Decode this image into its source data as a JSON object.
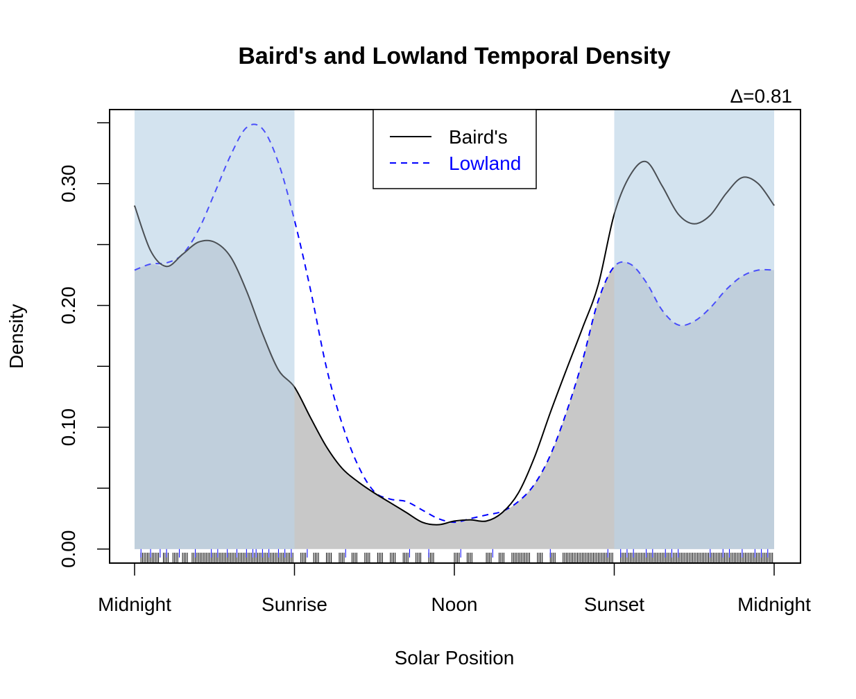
{
  "chart_data": {
    "type": "area",
    "title": "Baird's and Lowland Temporal Density",
    "xlabel": "Solar Position",
    "ylabel": "Density",
    "annotation": "Δ=0.81",
    "x_domain": [
      0,
      1
    ],
    "ylim": [
      -0.0115,
      0.3608
    ],
    "y_ticks": [
      0.0,
      0.05,
      0.1,
      0.15,
      0.2,
      0.25,
      0.3,
      0.35
    ],
    "y_tick_labels": [
      "0.00",
      "",
      "0.10",
      "",
      "0.20",
      "",
      "0.30",
      ""
    ],
    "x_ticks": [
      0,
      0.25,
      0.5,
      0.75,
      1
    ],
    "x_tick_labels": [
      "Midnight",
      "Sunrise",
      "Noon",
      "Sunset",
      "Midnight"
    ],
    "night_shading": [
      [
        0,
        0.25
      ],
      [
        0.75,
        1
      ]
    ],
    "overlap_shaded": true,
    "grid": false,
    "legend_position": "top-center",
    "colors": {
      "series_1": "#000000",
      "series_2": "#0000ff",
      "night": "#d3e3f0",
      "overlap": "#c8c8c8",
      "night_overlap": "#bfd0de",
      "curve_in_night": "#6b7b8c"
    },
    "x": [
      0,
      0.025,
      0.05,
      0.075,
      0.1,
      0.125,
      0.15,
      0.175,
      0.2,
      0.225,
      0.25,
      0.275,
      0.3,
      0.325,
      0.35,
      0.375,
      0.4,
      0.425,
      0.45,
      0.475,
      0.5,
      0.525,
      0.55,
      0.575,
      0.6,
      0.625,
      0.65,
      0.675,
      0.7,
      0.725,
      0.75,
      0.775,
      0.8,
      0.825,
      0.85,
      0.875,
      0.9,
      0.925,
      0.95,
      0.975,
      1
    ],
    "series": [
      {
        "name": "Baird's",
        "style": "solid",
        "values": [
          0.282,
          0.245,
          0.232,
          0.242,
          0.252,
          0.252,
          0.24,
          0.212,
          0.177,
          0.147,
          0.133,
          0.108,
          0.084,
          0.066,
          0.055,
          0.046,
          0.038,
          0.03,
          0.022,
          0.02,
          0.023,
          0.024,
          0.023,
          0.03,
          0.046,
          0.075,
          0.112,
          0.147,
          0.181,
          0.217,
          0.275,
          0.307,
          0.318,
          0.298,
          0.275,
          0.267,
          0.274,
          0.292,
          0.305,
          0.3,
          0.282
        ]
      },
      {
        "name": "Lowland",
        "style": "dashed",
        "values": [
          0.229,
          0.234,
          0.235,
          0.242,
          0.262,
          0.292,
          0.323,
          0.346,
          0.345,
          0.317,
          0.27,
          0.213,
          0.149,
          0.102,
          0.068,
          0.047,
          0.041,
          0.039,
          0.032,
          0.025,
          0.022,
          0.025,
          0.028,
          0.031,
          0.039,
          0.053,
          0.077,
          0.112,
          0.154,
          0.204,
          0.232,
          0.234,
          0.219,
          0.196,
          0.184,
          0.187,
          0.198,
          0.213,
          0.224,
          0.229,
          0.229
        ]
      }
    ],
    "rug": {
      "series_1_ticks": [
        0.01,
        0.02,
        0.03,
        0.045,
        0.06,
        0.075,
        0.09,
        0.1,
        0.11,
        0.12,
        0.13,
        0.14,
        0.15,
        0.16,
        0.17,
        0.18,
        0.19,
        0.2,
        0.21,
        0.22,
        0.23,
        0.24,
        0.26,
        0.28,
        0.3,
        0.32,
        0.34,
        0.36,
        0.38,
        0.4,
        0.42,
        0.44,
        0.46,
        0.5,
        0.52,
        0.55,
        0.57,
        0.59,
        0.6,
        0.61,
        0.63,
        0.65,
        0.67,
        0.68,
        0.69,
        0.7,
        0.71,
        0.72,
        0.73,
        0.74,
        0.76,
        0.77,
        0.78,
        0.79,
        0.8,
        0.81,
        0.82,
        0.83,
        0.84,
        0.85,
        0.86,
        0.87,
        0.88,
        0.89,
        0.9,
        0.91,
        0.92,
        0.93,
        0.94,
        0.95,
        0.96,
        0.97,
        0.98,
        0.99
      ],
      "series_2_ticks": [
        0.01,
        0.025,
        0.04,
        0.05,
        0.07,
        0.095,
        0.12,
        0.13,
        0.145,
        0.16,
        0.175,
        0.185,
        0.19,
        0.2,
        0.21,
        0.225,
        0.235,
        0.245,
        0.27,
        0.33,
        0.43,
        0.46,
        0.51,
        0.56,
        0.65,
        0.74,
        0.76,
        0.77,
        0.78,
        0.8,
        0.81,
        0.83,
        0.84,
        0.85,
        0.9,
        0.92,
        0.93,
        0.95,
        0.97,
        0.98,
        0.99
      ]
    }
  }
}
